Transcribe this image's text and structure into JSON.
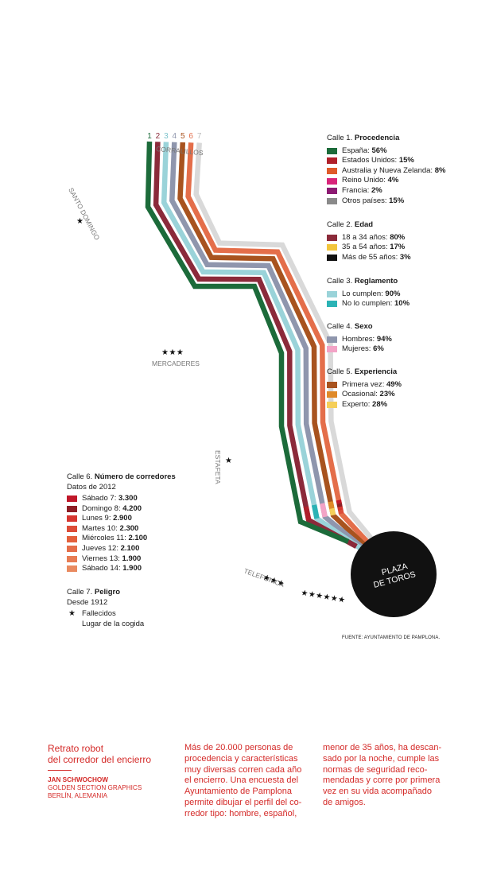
{
  "chart_data": {
    "type": "diagram",
    "route": {
      "start_label": "CORRALILLOS",
      "end_label": "PLAZA DE TOROS",
      "street_labels": [
        "SANTO DOMINGO",
        "MERCADERES",
        "ESTAFETA",
        "TELEFÓNICA"
      ],
      "lane_numbers": [
        "1",
        "2",
        "3",
        "4",
        "5",
        "6",
        "7"
      ],
      "death_stars": [
        {
          "place": "SANTO DOMINGO",
          "count": 1
        },
        {
          "place": "MERCADERES",
          "count": 3
        },
        {
          "place": "ESTAFETA",
          "count": 1
        },
        {
          "place": "TELEFÓNICA",
          "count": 3
        },
        {
          "place": "PLAZA DE TOROS",
          "count": 6
        }
      ]
    },
    "streets": [
      {
        "street": "Calle 1",
        "topic": "Procedencia",
        "entries": [
          {
            "label": "España",
            "value": "56%",
            "color": "#1c6b3a"
          },
          {
            "label": "Estados Unidos",
            "value": "15%",
            "color": "#b0202a"
          },
          {
            "label": "Australia y Nueva Zelanda",
            "value": "8%",
            "color": "#df5a2a"
          },
          {
            "label": "Reino Unido",
            "value": "4%",
            "color": "#d8247a"
          },
          {
            "label": "Francia",
            "value": "2%",
            "color": "#8c1a72"
          },
          {
            "label": "Otros países",
            "value": "15%",
            "color": "#8a8a8a"
          }
        ]
      },
      {
        "street": "Calle 2",
        "topic": "Edad",
        "entries": [
          {
            "label": "18 a 34 años",
            "value": "80%",
            "color": "#8b2a3a"
          },
          {
            "label": "35 a 54 años",
            "value": "17%",
            "color": "#f2c53c"
          },
          {
            "label": "Más de 55 años",
            "value": "3%",
            "color": "#111111"
          }
        ]
      },
      {
        "street": "Calle 3",
        "topic": "Reglamento",
        "entries": [
          {
            "label": "Lo cumplen",
            "value": "90%",
            "color": "#9ad3d9"
          },
          {
            "label": "No lo cumplen",
            "value": "10%",
            "color": "#2bb3b5"
          }
        ]
      },
      {
        "street": "Calle 4",
        "topic": "Sexo",
        "entries": [
          {
            "label": "Hombres",
            "value": "94%",
            "color": "#8f96ad"
          },
          {
            "label": "Mujeres",
            "value": "6%",
            "color": "#f3a3c6"
          }
        ]
      },
      {
        "street": "Calle 5",
        "topic": "Experiencia",
        "entries": [
          {
            "label": "Primera vez",
            "value": "49%",
            "color": "#a8531f"
          },
          {
            "label": "Ocasional",
            "value": "23%",
            "color": "#df8a2a"
          },
          {
            "label": "Experto",
            "value": "28%",
            "color": "#f5cf5a"
          }
        ]
      },
      {
        "street": "Calle 6",
        "topic": "Número de corredores",
        "subtitle": "Datos de 2012",
        "entries": [
          {
            "label": "Sábado 7",
            "value": "3.300",
            "color": "#c0182a"
          },
          {
            "label": "Domingo 8",
            "value": "4.200",
            "color": "#8e1e26"
          },
          {
            "label": "Lunes 9",
            "value": "2.900",
            "color": "#d63630"
          },
          {
            "label": "Martes 10",
            "value": "2.300",
            "color": "#dc4c38"
          },
          {
            "label": "Miércoles 11",
            "value": "2.100",
            "color": "#e3603c"
          },
          {
            "label": "Jueves 12",
            "value": "2.100",
            "color": "#e46e4a"
          },
          {
            "label": "Viernes 13",
            "value": "1.900",
            "color": "#e77c54"
          },
          {
            "label": "Sábado 14",
            "value": "1.900",
            "color": "#e98a60"
          }
        ]
      },
      {
        "street": "Calle 7",
        "topic": "Peligro",
        "subtitle": "Desde 1912",
        "entries": [
          {
            "label": "Fallecidos",
            "symbol": "★"
          },
          {
            "label": "Lugar de la cogida",
            "symbol": ""
          }
        ]
      }
    ],
    "source": "FUENTE: AYUNTAMIENTO DE PAMPLONA."
  },
  "credit": {
    "title_line1": "Retrato robot",
    "title_line2": "del corredor del encierro",
    "author": "JAN SCHWOCHOW",
    "org": "GOLDEN SECTION GRAPHICS",
    "place": "BERLÍN, ALEMANIA"
  },
  "body_text": {
    "col1": [
      "Más de 20.000 personas de",
      "procedencia y características",
      "muy diversas corren cada año",
      "el encierro. Una encuesta del",
      "Ayuntamiento de Pamplona",
      "permite dibujar el perfil del co-",
      "rredor tipo: hombre, español,"
    ],
    "col2": [
      "menor de 35 años, ha descan-",
      "sado por la noche, cumple las",
      "normas de seguridad reco-",
      "mendadas y corre por primera",
      "vez en su vida acompañado",
      "de amigos."
    ]
  },
  "colors": {
    "accent_red": "#d42a28",
    "lane1": "#1c6b3a",
    "lane2": "#8b2a3a",
    "lane3": "#9ad3d9",
    "lane4": "#8f96ad",
    "lane5": "#a8531f",
    "lane6": "#e46e4a",
    "lane7": "#d9d9d9",
    "number1": "#1c6b3a",
    "number2": "#8b2a3a",
    "number3": "#7cc3cc",
    "number4": "#8f96ad",
    "number5": "#a8531f",
    "number6": "#e46e4a",
    "number7": "#bdbdbd"
  }
}
